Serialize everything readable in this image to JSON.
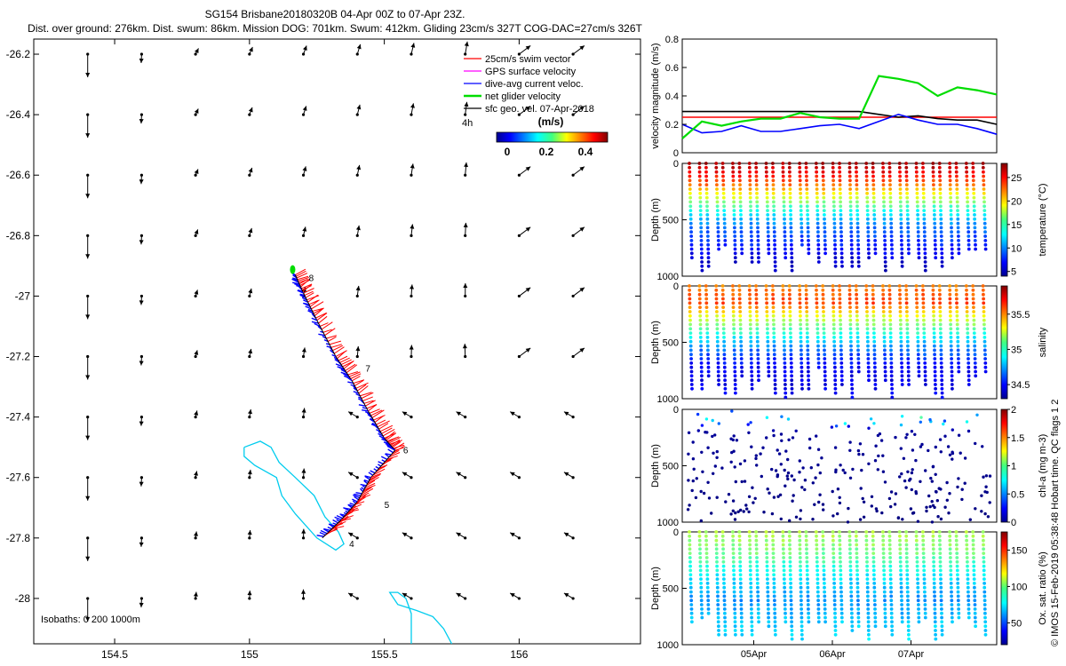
{
  "title": {
    "line1": "SG154 Brisbane20180320B 04-Apr 00Z to 07-Apr 23Z.",
    "line2": "Dist. over ground: 276km. Dist. swum: 86km. Mission DOG: 701km. Swum: 412km. Gliding 23cm/s 327T COG-DAC=27cm/s 326T"
  },
  "credit": "© IMOS 15-Feb-2019 05:38:48 Hobart time. QC flags 1  2",
  "colors": {
    "swim": "#ff0000",
    "gps": "#ff00ff",
    "dac": "#0000ff",
    "net": "#00dd00",
    "sfc": "#000000",
    "isobath": "#00ccee",
    "axis": "#000000"
  },
  "chart_data": [
    {
      "id": "map",
      "type": "scatter",
      "xlabel": "Longitude",
      "ylabel": "Latitude",
      "xlim": [
        154.2,
        156.45
      ],
      "ylim": [
        -28.15,
        -26.15
      ],
      "xticks": [
        154.5,
        155,
        155.5,
        156
      ],
      "xtick_labels": [
        "154.5",
        "155",
        "155.5",
        "156"
      ],
      "yticks": [
        -26.2,
        -26.4,
        -26.6,
        -26.8,
        -27,
        -27.2,
        -27.4,
        -27.6,
        -27.8,
        -28
      ],
      "ytick_labels": [
        "-26.2",
        "-26.4",
        "-26.6",
        "-26.8",
        "-27",
        "-27.2",
        "-27.4",
        "-27.6",
        "-27.8",
        "-28"
      ],
      "legend": {
        "placement": "top-right",
        "entries": [
          {
            "label": "25cm/s swim vector",
            "color": "#ff0000"
          },
          {
            "label": "GPS surface velocity",
            "color": "#ff00ff"
          },
          {
            "label": "dive-avg current veloc.",
            "color": "#0000ff"
          },
          {
            "label": "net glider velocity",
            "color": "#00dd00"
          },
          {
            "label": "sfc geo. vel. 07-Apr-2018",
            "color": "#000000"
          }
        ],
        "scale_label": "4h",
        "colorbar_title": "(m/s)",
        "colorbar_ticks": [
          "0",
          "0.2",
          "0.4"
        ],
        "colorbar_range": [
          0,
          0.5
        ]
      },
      "isobath_label": "Isobaths: 0   200   1000m",
      "track": [
        [
          155.17,
          -26.93
        ],
        [
          155.2,
          -26.99
        ],
        [
          155.25,
          -27.08
        ],
        [
          155.32,
          -27.2
        ],
        [
          155.38,
          -27.28
        ],
        [
          155.44,
          -27.38
        ],
        [
          155.5,
          -27.47
        ],
        [
          155.54,
          -27.51
        ],
        [
          155.45,
          -27.6
        ],
        [
          155.4,
          -27.68
        ],
        [
          155.34,
          -27.74
        ],
        [
          155.27,
          -27.8
        ]
      ],
      "day_labels": [
        {
          "label": "8",
          "lon": 155.22,
          "lat": -26.95
        },
        {
          "label": "7",
          "lon": 155.43,
          "lat": -27.25
        },
        {
          "label": "6",
          "lon": 155.57,
          "lat": -27.52
        },
        {
          "label": "5",
          "lon": 155.5,
          "lat": -27.7
        },
        {
          "label": "4",
          "lon": 155.37,
          "lat": -27.83
        }
      ],
      "isobaths": [
        [
          [
            154.98,
            -27.5
          ],
          [
            155.04,
            -27.48
          ],
          [
            155.08,
            -27.5
          ],
          [
            155.11,
            -27.55
          ],
          [
            155.17,
            -27.6
          ],
          [
            155.24,
            -27.66
          ],
          [
            155.28,
            -27.73
          ],
          [
            155.33,
            -27.78
          ],
          [
            155.35,
            -27.82
          ],
          [
            155.32,
            -27.84
          ],
          [
            155.25,
            -27.8
          ],
          [
            155.17,
            -27.72
          ],
          [
            155.12,
            -27.66
          ],
          [
            155.1,
            -27.6
          ],
          [
            155.06,
            -27.58
          ],
          [
            155.02,
            -27.56
          ],
          [
            154.98,
            -27.53
          ],
          [
            154.98,
            -27.5
          ]
        ],
        [
          [
            155.75,
            -28.15
          ],
          [
            155.72,
            -28.1
          ],
          [
            155.68,
            -28.06
          ],
          [
            155.62,
            -28.04
          ],
          [
            155.55,
            -28.02
          ],
          [
            155.52,
            -27.98
          ],
          [
            155.55,
            -27.98
          ],
          [
            155.58,
            -28.0
          ],
          [
            155.6,
            -28.05
          ],
          [
            155.6,
            -28.15
          ]
        ]
      ]
    },
    {
      "id": "velocity",
      "type": "line",
      "xlabel": "",
      "ylabel": "velocity magnitude (m/s)",
      "ylim": [
        0,
        0.8
      ],
      "yticks": [
        "0",
        "0.2",
        "0.4",
        "0.6",
        "0.8"
      ],
      "x": [
        0,
        0.25,
        0.5,
        0.75,
        1,
        1.25,
        1.5,
        1.75,
        2,
        2.25,
        2.5,
        2.75,
        3,
        3.25,
        3.5,
        3.75,
        4
      ],
      "series": [
        {
          "name": "25cm/s swim vector",
          "color": "#ff0000",
          "values": [
            0.25,
            0.25,
            0.25,
            0.25,
            0.25,
            0.25,
            0.25,
            0.25,
            0.25,
            0.25,
            0.25,
            0.25,
            0.25,
            0.25,
            0.25,
            0.25,
            0.25
          ]
        },
        {
          "name": "GPS surface velocity",
          "color": "#000000",
          "values": [
            0.29,
            0.29,
            0.29,
            0.29,
            0.29,
            0.29,
            0.29,
            0.29,
            0.29,
            0.29,
            0.27,
            0.25,
            0.26,
            0.24,
            0.23,
            0.23,
            0.2
          ]
        },
        {
          "name": "dive-avg current veloc.",
          "color": "#0000ff",
          "values": [
            0.2,
            0.14,
            0.15,
            0.19,
            0.15,
            0.15,
            0.17,
            0.19,
            0.2,
            0.17,
            0.22,
            0.27,
            0.23,
            0.2,
            0.2,
            0.17,
            0.13
          ]
        },
        {
          "name": "net glider velocity",
          "color": "#00dd00",
          "values": [
            0.1,
            0.22,
            0.19,
            0.22,
            0.24,
            0.24,
            0.28,
            0.25,
            0.24,
            0.24,
            0.54,
            0.52,
            0.49,
            0.4,
            0.46,
            0.44,
            0.41
          ]
        }
      ]
    },
    {
      "id": "temperature",
      "type": "heatmap",
      "ylabel": "Depth (m)",
      "yticks": [
        "0",
        "500",
        "1000"
      ],
      "ylim": [
        1000,
        0
      ],
      "colorbar_label": "temperature (°C)",
      "colorbar_ticks": [
        "5",
        "10",
        "15",
        "20",
        "25"
      ],
      "colorbar_range": [
        4,
        28
      ],
      "profile": [
        [
          0,
          27
        ],
        [
          100,
          25
        ],
        [
          200,
          22
        ],
        [
          300,
          18
        ],
        [
          400,
          14
        ],
        [
          550,
          10
        ],
        [
          700,
          8
        ],
        [
          850,
          6
        ],
        [
          1000,
          5
        ]
      ]
    },
    {
      "id": "salinity",
      "type": "heatmap",
      "ylabel": "Depth (m)",
      "yticks": [
        "0",
        "500",
        "1000"
      ],
      "ylim": [
        1000,
        0
      ],
      "colorbar_label": "salinity",
      "colorbar_ticks": [
        "34.5",
        "35",
        "35.5"
      ],
      "colorbar_range": [
        34.3,
        35.9
      ],
      "profile": [
        [
          0,
          35.5
        ],
        [
          150,
          35.6
        ],
        [
          250,
          35.3
        ],
        [
          400,
          35.0
        ],
        [
          550,
          34.7
        ],
        [
          700,
          34.5
        ],
        [
          850,
          34.45
        ],
        [
          1000,
          34.5
        ]
      ]
    },
    {
      "id": "chla",
      "type": "heatmap",
      "ylabel": "Depth (m)",
      "yticks": [
        "0",
        "500",
        "1000"
      ],
      "ylim": [
        1000,
        0
      ],
      "colorbar_label": "chl-a (mg m-3)",
      "colorbar_ticks": [
        "0",
        "0.5",
        "1",
        "1.5",
        "2"
      ],
      "colorbar_range": [
        0,
        2
      ],
      "profile": [
        [
          0,
          0.1
        ],
        [
          80,
          0.5
        ],
        [
          120,
          0.3
        ],
        [
          200,
          0.05
        ],
        [
          1000,
          0.0
        ]
      ]
    },
    {
      "id": "oxygen",
      "type": "heatmap",
      "ylabel": "Depth (m)",
      "yticks": [
        "0",
        "500",
        "1000"
      ],
      "ylim": [
        1000,
        0
      ],
      "xticks": [
        "05Apr",
        "06Apr",
        "07Apr"
      ],
      "colorbar_label": "Ox. sat. ratio (%)",
      "colorbar_ticks": [
        "50",
        "100",
        "150"
      ],
      "colorbar_range": [
        20,
        175
      ],
      "profile": [
        [
          0,
          105
        ],
        [
          200,
          95
        ],
        [
          400,
          75
        ],
        [
          600,
          62
        ],
        [
          800,
          70
        ],
        [
          1000,
          75
        ]
      ]
    }
  ]
}
